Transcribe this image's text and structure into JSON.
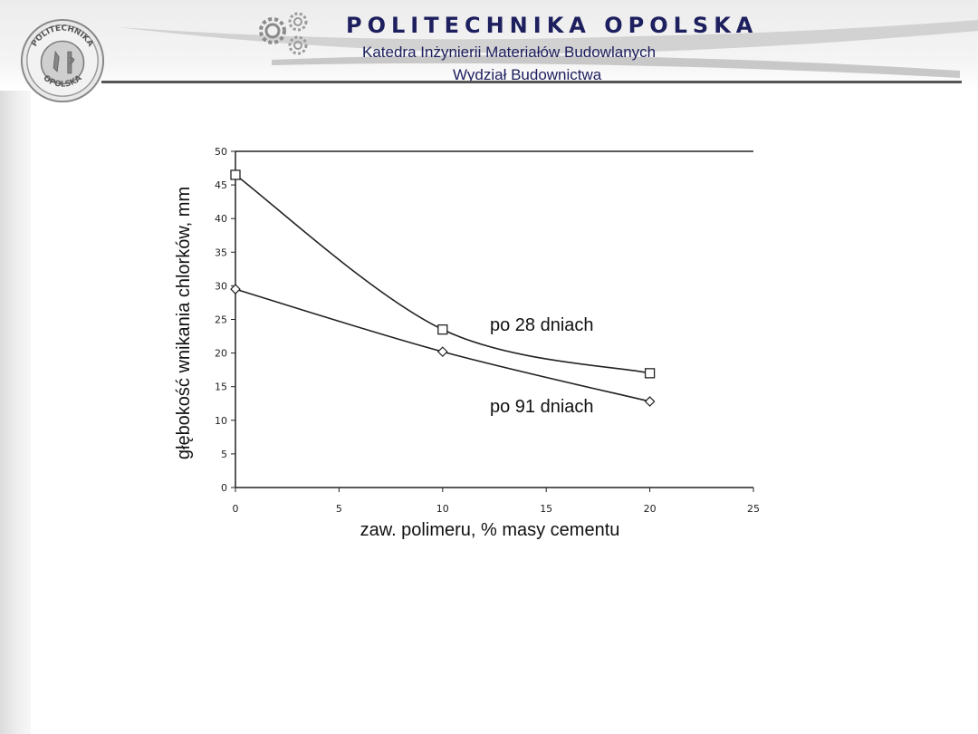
{
  "header": {
    "university": "POLITECHNIKA OPOLSKA",
    "department": "Katedra Inżynierii Materiałów Budowlanych",
    "faculty": "Wydział Budownictwa",
    "logo_text_top": "POLITECHNIKA",
    "logo_text_bottom": "OPOLSKA",
    "logo_icon": "university-seal-icon",
    "gears_icon": "gears-icon",
    "title_color": "#1d1f5e"
  },
  "chart_data": {
    "type": "line",
    "title": "",
    "xlabel": "zaw. polimeru, % masy cementu",
    "ylabel": "głębokość wnikania chlorków, mm",
    "xlim": [
      0,
      25
    ],
    "ylim": [
      0,
      50
    ],
    "x_ticks": [
      "0",
      "5",
      "10",
      "15",
      "20",
      "25"
    ],
    "y_ticks": [
      "0",
      "5",
      "10",
      "15",
      "20",
      "25",
      "30",
      "35",
      "40",
      "45",
      "50"
    ],
    "grid": false,
    "series": [
      {
        "name": "po 28 dniach",
        "marker": "square",
        "x": [
          0,
          10,
          20
        ],
        "y": [
          46.5,
          23.5,
          17.0
        ]
      },
      {
        "name": "po 91 dniach",
        "marker": "diamond",
        "x": [
          0,
          10,
          20
        ],
        "y": [
          29.5,
          20.2,
          12.8
        ]
      }
    ]
  }
}
